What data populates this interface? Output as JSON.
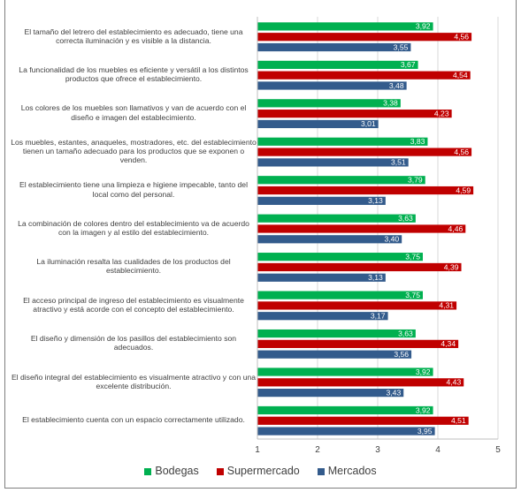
{
  "chart_data": {
    "type": "bar",
    "orientation": "horizontal",
    "categories": [
      "El tamaño del letrero del establecimiento es adecuado, tiene una correcta iluminación y es visible a la distancia.",
      "La funcionalidad de los muebles es eficiente y versátil a los distintos productos que ofrece el establecimiento.",
      "Los colores de los muebles son llamativos y van de acuerdo con el diseño e imagen del establecimiento.",
      "Los muebles, estantes, anaqueles, mostradores, etc. del establecimiento tienen un tamaño adecuado para los productos que se exponen o venden.",
      "El establecimiento tiene una limpieza e higiene impecable, tanto del local como del personal.",
      "La combinación de colores dentro del establecimiento va de acuerdo con la imagen y al estilo del establecimiento.",
      "La iluminación resalta las cualidades de los productos del establecimiento.",
      "El acceso principal de ingreso del establecimiento es visualmente atractivo y está acorde con el concepto del establecimiento.",
      "El diseño y dimensión de los pasillos del establecimiento son adecuados.",
      "El diseño integral del establecimiento es visualmente atractivo y con una excelente distribución.",
      "El establecimiento cuenta con un espacio correctamente utilizado."
    ],
    "series": [
      {
        "name": "Bodegas",
        "color": "#00b050",
        "values": [
          3.92,
          3.67,
          3.38,
          3.83,
          3.79,
          3.63,
          3.75,
          3.75,
          3.63,
          3.92,
          3.92
        ],
        "labels": [
          "3,92",
          "3,67",
          "3,38",
          "3,83",
          "3,79",
          "3,63",
          "3,75",
          "3,75",
          "3,63",
          "3,92",
          "3,92"
        ]
      },
      {
        "name": "Supermercado",
        "color": "#c00000",
        "values": [
          4.56,
          4.54,
          4.23,
          4.56,
          4.59,
          4.46,
          4.39,
          4.31,
          4.34,
          4.43,
          4.51
        ],
        "labels": [
          "4,56",
          "4,54",
          "4,23",
          "4,56",
          "4,59",
          "4,46",
          "4,39",
          "4,31",
          "4,34",
          "4,43",
          "4,51"
        ]
      },
      {
        "name": "Mercados",
        "color": "#335b8c",
        "values": [
          3.55,
          3.48,
          3.01,
          3.51,
          3.13,
          3.4,
          3.13,
          3.17,
          3.56,
          3.43,
          3.95
        ],
        "labels": [
          "3,55",
          "3,48",
          "3,01",
          "3,51",
          "3,13",
          "3,40",
          "3,13",
          "3,17",
          "3,56",
          "3,43",
          "3,95"
        ]
      }
    ],
    "xlim": [
      1,
      5
    ],
    "xticks": [
      "1",
      "2",
      "3",
      "4",
      "5"
    ],
    "grid": true,
    "legend_position": "bottom"
  }
}
